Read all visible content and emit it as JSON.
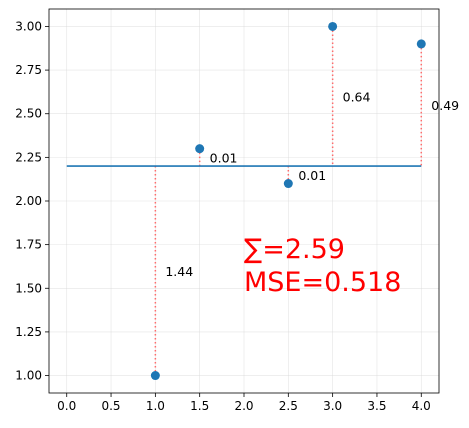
{
  "chart_data": {
    "type": "scatter",
    "xlim": [
      -0.2,
      4.2
    ],
    "ylim": [
      0.9,
      3.1
    ],
    "x_ticks": [
      0.0,
      0.5,
      1.0,
      1.5,
      2.0,
      2.5,
      3.0,
      3.5,
      4.0
    ],
    "x_tick_labels": [
      "0.0",
      "0.5",
      "1.0",
      "1.5",
      "2.0",
      "2.5",
      "3.0",
      "3.5",
      "4.0"
    ],
    "y_ticks": [
      1.0,
      1.25,
      1.5,
      1.75,
      2.0,
      2.25,
      2.5,
      2.75,
      3.0
    ],
    "y_tick_labels": [
      "1.00",
      "1.25",
      "1.50",
      "1.75",
      "2.00",
      "2.25",
      "2.50",
      "2.75",
      "3.00"
    ],
    "grid": true,
    "points": {
      "x": [
        1.0,
        1.5,
        2.5,
        3.0,
        4.0
      ],
      "y": [
        1.0,
        2.3,
        2.1,
        3.0,
        2.9
      ],
      "color": "#1f77b4"
    },
    "fit_line": {
      "x": [
        0.0,
        4.0
      ],
      "y": [
        2.2,
        2.2
      ],
      "color": "#1f77b4"
    },
    "residuals": {
      "color": "#ff6b6b",
      "labels": [
        "1.44",
        "0.01",
        "0.01",
        "0.64",
        "0.49"
      ]
    },
    "annotation": {
      "sum_text": "∑=2.59",
      "mse_text": "MSE=0.518",
      "color": "#ff0000"
    }
  }
}
